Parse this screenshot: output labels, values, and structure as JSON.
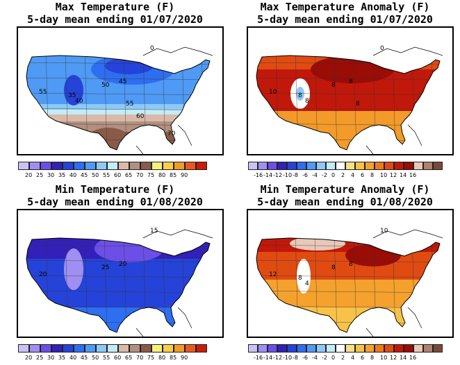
{
  "panels": [
    {
      "title1": "Max Temperature (F)",
      "title2": "5-day mean ending 01/07/2020",
      "palette": [
        "#c9c3f5",
        "#9f8ff0",
        "#6c4fe6",
        "#3320b8",
        "#2543d8",
        "#2e6ef0",
        "#4f9af4",
        "#8ec9f7",
        "#c3ecf7",
        "#d9b9a8",
        "#b38f80",
        "#8a5a48",
        "#f4f07a",
        "#f8cf45",
        "#f29a2a",
        "#e8591e",
        "#c81d0a"
      ],
      "labels": [
        "20",
        "25",
        "30",
        "35",
        "40",
        "45",
        "50",
        "55",
        "60",
        "65",
        "70",
        "75",
        "80",
        "85",
        "90"
      ],
      "map_labels": [
        "0",
        "55",
        "50",
        "45",
        "35",
        "40",
        "55",
        "60",
        "70"
      ],
      "scheme": "cold_max"
    },
    {
      "title1": "Max Temperature Anomaly (F)",
      "title2": "5-day mean ending 01/07/2020",
      "palette": [
        "#c9c3f5",
        "#9f8ff0",
        "#6c4fe6",
        "#3320b8",
        "#2543d8",
        "#2e6ef0",
        "#4f9af4",
        "#8ec9f7",
        "#c3ecf7",
        "#ffffff",
        "#f8e08a",
        "#f8c248",
        "#f4a12e",
        "#ee7a1c",
        "#e04b12",
        "#c0180a",
        "#9a0c06",
        "#e8c8b8",
        "#b08070",
        "#7a4a38"
      ],
      "labels": [
        "-16",
        "-14",
        "-12",
        "-10",
        "-8",
        "-6",
        "-4",
        "-2",
        "0",
        "2",
        "4",
        "6",
        "8",
        "10",
        "12",
        "14",
        "16"
      ],
      "map_labels": [
        "0",
        "10",
        "8",
        "8",
        "8",
        "8",
        "8"
      ],
      "scheme": "warm_anom"
    },
    {
      "title1": "Min Temperature (F)",
      "title2": "5-day mean ending 01/08/2020",
      "palette": [
        "#c9c3f5",
        "#9f8ff0",
        "#6c4fe6",
        "#3320b8",
        "#2543d8",
        "#2e6ef0",
        "#4f9af4",
        "#8ec9f7",
        "#c3ecf7",
        "#d9b9a8",
        "#b38f80",
        "#8a5a48",
        "#f4f07a",
        "#f8cf45",
        "#f29a2a",
        "#e8591e",
        "#c81d0a"
      ],
      "labels": [
        "20",
        "25",
        "30",
        "35",
        "40",
        "45",
        "50",
        "55",
        "60",
        "65",
        "70",
        "75",
        "80",
        "85",
        "90"
      ],
      "map_labels": [
        "15",
        "20",
        "25",
        "20"
      ],
      "scheme": "cold_min"
    },
    {
      "title1": "Min Temperature Anomaly (F)",
      "title2": "5-day mean ending 01/08/2020",
      "palette": [
        "#c9c3f5",
        "#9f8ff0",
        "#6c4fe6",
        "#3320b8",
        "#2543d8",
        "#2e6ef0",
        "#4f9af4",
        "#8ec9f7",
        "#c3ecf7",
        "#ffffff",
        "#f8e08a",
        "#f8c248",
        "#f4a12e",
        "#ee7a1c",
        "#e04b12",
        "#c0180a",
        "#9a0c06",
        "#e8c8b8",
        "#b08070",
        "#7a4a38"
      ],
      "labels": [
        "-16",
        "-14",
        "-12",
        "-10",
        "-8",
        "-6",
        "-4",
        "-2",
        "0",
        "2",
        "4",
        "6",
        "8",
        "10",
        "12",
        "14",
        "16"
      ],
      "map_labels": [
        "10",
        "12",
        "8",
        "8",
        "8",
        "4"
      ],
      "scheme": "warm_anom2"
    }
  ]
}
